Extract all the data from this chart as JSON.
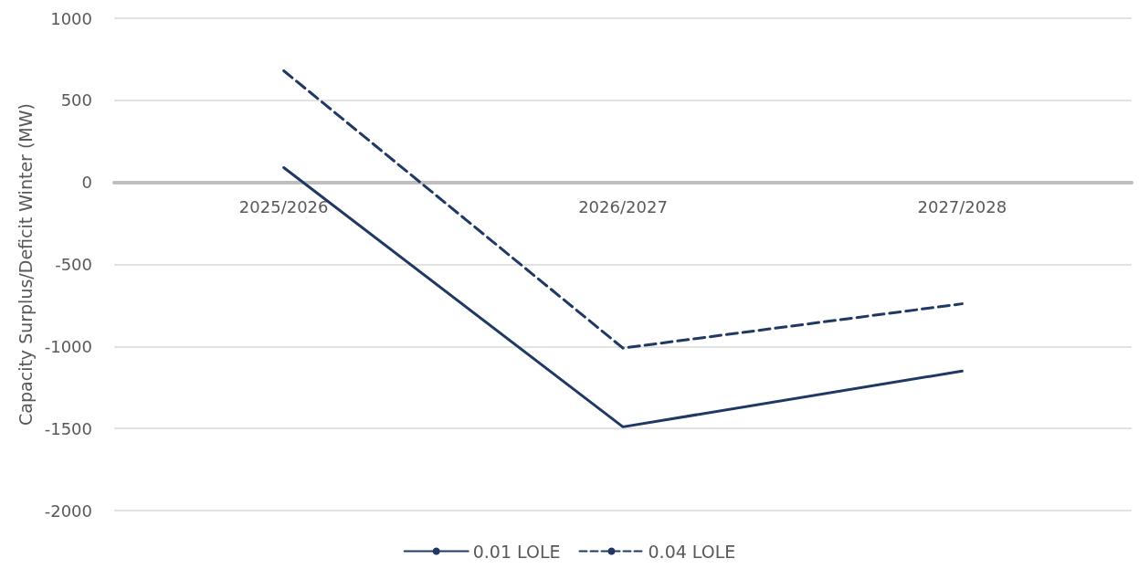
{
  "chart_data": {
    "type": "line",
    "ylabel": "Capacity Surplus/Deficit Winter (MW)",
    "categories": [
      "2025/2026",
      "2026/2027",
      "2027/2028"
    ],
    "series": [
      {
        "name": "0.01 LOLE",
        "color": "#1f3864",
        "values": [
          90,
          -1490,
          -1150
        ],
        "line_style": "solid"
      },
      {
        "name": "0.04 LOLE",
        "color": "#1f3864",
        "values": [
          680,
          -1010,
          -740
        ],
        "line_style": "dashed"
      }
    ],
    "ylim": [
      -2000,
      1000
    ],
    "yticks": [
      -2000,
      -1500,
      -1000,
      -500,
      0,
      500,
      1000
    ],
    "grid": "y",
    "legend": "bottom",
    "marker": "none"
  }
}
